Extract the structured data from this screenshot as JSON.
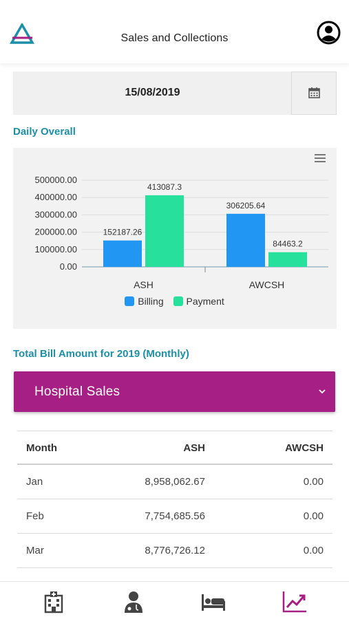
{
  "header": {
    "title": "Sales and Collections"
  },
  "date": {
    "value": "15/08/2019"
  },
  "daily": {
    "title": "Daily Overall"
  },
  "monthly": {
    "title": "Total Bill Amount for 2019 (Monthly)"
  },
  "dropdown": {
    "label": "Hospital Sales"
  },
  "colors": {
    "billing": "#2196f3",
    "payment": "#26e09c",
    "accent": "#a61f84",
    "teal": "#1d8fa8"
  },
  "chart_data": {
    "type": "bar",
    "categories": [
      "ASH",
      "AWCSH"
    ],
    "series": [
      {
        "name": "Billing",
        "values": [
          152187.26,
          306205.64
        ],
        "labels": [
          "152187.26",
          "306205.64"
        ]
      },
      {
        "name": "Payment",
        "values": [
          413087.3,
          84463.2
        ],
        "labels": [
          "413087.3",
          "84463.2"
        ]
      }
    ],
    "yticks": [
      "0.00",
      "100000.00",
      "200000.00",
      "300000.00",
      "400000.00",
      "500000.00"
    ],
    "ylim": [
      0,
      500000
    ],
    "legend": "bottom",
    "grid": true
  },
  "table": {
    "headers": [
      "Month",
      "ASH",
      "AWCSH"
    ],
    "rows": [
      [
        "Jan",
        "8,958,062.67",
        "0.00"
      ],
      [
        "Feb",
        "7,754,685.56",
        "0.00"
      ],
      [
        "Mar",
        "8,776,726.12",
        "0.00"
      ]
    ]
  },
  "nav": {
    "items": [
      "hospital-icon",
      "doctor-icon",
      "bed-icon",
      "trending-up-icon"
    ],
    "active": 3
  }
}
